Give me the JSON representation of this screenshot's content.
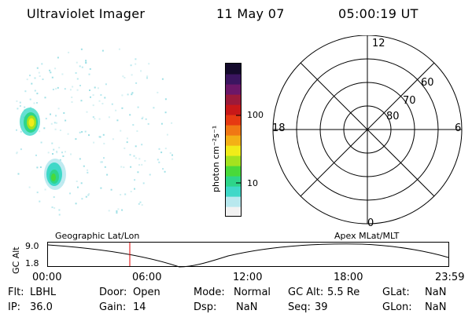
{
  "header": {
    "title": "Ultraviolet Imager",
    "date": "11 May 07",
    "time": "05:00:19 UT"
  },
  "colorbar": {
    "unit_label": "photon cm⁻²s⁻¹",
    "ticks": [
      "100",
      "10"
    ],
    "colors": [
      "#f2f2f2",
      "#b8e8ee",
      "#3fd8c8",
      "#2ed58a",
      "#49d93a",
      "#a4e21f",
      "#f1ec19",
      "#f3b116",
      "#f07814",
      "#e63a12",
      "#c81818",
      "#9b1a3a",
      "#6c1768",
      "#3b1560",
      "#140a2c"
    ]
  },
  "polar": {
    "mlt_labels": {
      "top": "12",
      "left": "18",
      "right": "6",
      "bottom": "0"
    },
    "lat_labels": [
      "60",
      "70",
      "80"
    ]
  },
  "timeline": {
    "ylabel": "GC Alt",
    "yticks": [
      "9.0",
      "1.8"
    ],
    "left_label": "Geographic Lat/Lon",
    "right_label": "Apex MLat/MLT",
    "xticks": [
      "00:00",
      "06:00",
      "12:00",
      "18:00",
      "23:59"
    ],
    "marker_color": "#e00000"
  },
  "status": {
    "flt_label": "Flt:",
    "flt_value": "LBHL",
    "ip_label": "IP:",
    "ip_value": "36.0",
    "door_label": "Door:",
    "door_value": "Open",
    "gain_label": "Gain:",
    "gain_value": "14",
    "mode_label": "Mode:",
    "mode_value": "Normal",
    "dsp_label": "Dsp:",
    "dsp_value": "NaN",
    "gcalt_label": "GC Alt:",
    "gcalt_value": "5.5 Re",
    "seq_label": "Seq:",
    "seq_value": "39",
    "glat_label": "GLat:",
    "glat_value": "NaN",
    "glon_label": "GLon:",
    "glon_value": "NaN"
  }
}
